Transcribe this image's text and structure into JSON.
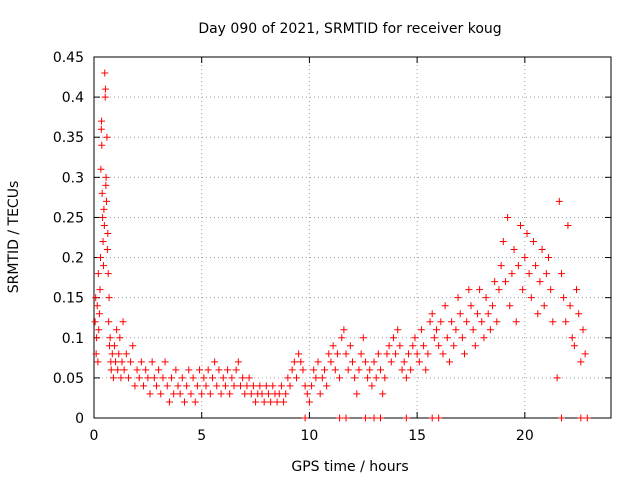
{
  "chart_data": {
    "type": "scatter",
    "title": "Day 090 of 2021, SRMTID for receiver koug",
    "xlabel": "GPS time / hours",
    "ylabel": "SRMTID / TECUs",
    "xlim": [
      0,
      24
    ],
    "ylim": [
      0,
      0.45
    ],
    "xticks": [
      0,
      5,
      10,
      15,
      20
    ],
    "yticks": [
      0,
      0.05,
      0.1,
      0.15,
      0.2,
      0.25,
      0.3,
      0.35,
      0.4,
      0.45
    ],
    "xtick_labels": [
      "0",
      "5",
      "10",
      "15",
      "20"
    ],
    "ytick_labels": [
      "0",
      "0.05",
      "0.1",
      "0.15",
      "0.2",
      "0.25",
      "0.3",
      "0.35",
      "0.4",
      "0.45"
    ],
    "grid": true,
    "marker": "+",
    "color": "#ff0000",
    "series": [
      {
        "name": "SRMTID",
        "points": [
          [
            0.05,
            0.12
          ],
          [
            0.08,
            0.15
          ],
          [
            0.1,
            0.08
          ],
          [
            0.12,
            0.1
          ],
          [
            0.15,
            0.14
          ],
          [
            0.18,
            0.07
          ],
          [
            0.2,
            0.18
          ],
          [
            0.22,
            0.11
          ],
          [
            0.25,
            0.13
          ],
          [
            0.28,
            0.16
          ],
          [
            0.3,
            0.2
          ],
          [
            0.32,
            0.31
          ],
          [
            0.34,
            0.36
          ],
          [
            0.35,
            0.37
          ],
          [
            0.36,
            0.34
          ],
          [
            0.38,
            0.28
          ],
          [
            0.4,
            0.25
          ],
          [
            0.42,
            0.22
          ],
          [
            0.44,
            0.19
          ],
          [
            0.46,
            0.26
          ],
          [
            0.48,
            0.24
          ],
          [
            0.5,
            0.43
          ],
          [
            0.52,
            0.4
          ],
          [
            0.53,
            0.41
          ],
          [
            0.55,
            0.29
          ],
          [
            0.56,
            0.3
          ],
          [
            0.58,
            0.27
          ],
          [
            0.6,
            0.35
          ],
          [
            0.62,
            0.21
          ],
          [
            0.64,
            0.23
          ],
          [
            0.66,
            0.18
          ],
          [
            0.68,
            0.12
          ],
          [
            0.7,
            0.15
          ],
          [
            0.72,
            0.09
          ],
          [
            0.75,
            0.1
          ],
          [
            0.78,
            0.07
          ],
          [
            0.8,
            0.06
          ],
          [
            0.85,
            0.08
          ],
          [
            0.9,
            0.05
          ],
          [
            0.95,
            0.09
          ],
          [
            1.0,
            0.07
          ],
          [
            1.05,
            0.11
          ],
          [
            1.1,
            0.06
          ],
          [
            1.15,
            0.08
          ],
          [
            1.2,
            0.1
          ],
          [
            1.25,
            0.05
          ],
          [
            1.3,
            0.07
          ],
          [
            1.35,
            0.12
          ],
          [
            1.4,
            0.06
          ],
          [
            1.5,
            0.08
          ],
          [
            1.6,
            0.05
          ],
          [
            1.7,
            0.07
          ],
          [
            1.8,
            0.09
          ],
          [
            1.9,
            0.04
          ],
          [
            2.0,
            0.06
          ],
          [
            2.1,
            0.05
          ],
          [
            2.2,
            0.07
          ],
          [
            2.3,
            0.04
          ],
          [
            2.4,
            0.06
          ],
          [
            2.5,
            0.05
          ],
          [
            2.6,
            0.03
          ],
          [
            2.7,
            0.07
          ],
          [
            2.8,
            0.05
          ],
          [
            2.9,
            0.04
          ],
          [
            3.0,
            0.06
          ],
          [
            3.1,
            0.03
          ],
          [
            3.2,
            0.05
          ],
          [
            3.3,
            0.07
          ],
          [
            3.4,
            0.04
          ],
          [
            3.5,
            0.02
          ],
          [
            3.6,
            0.05
          ],
          [
            3.7,
            0.03
          ],
          [
            3.8,
            0.06
          ],
          [
            3.9,
            0.04
          ],
          [
            4.0,
            0.03
          ],
          [
            4.1,
            0.05
          ],
          [
            4.2,
            0.02
          ],
          [
            4.3,
            0.04
          ],
          [
            4.4,
            0.06
          ],
          [
            4.5,
            0.03
          ],
          [
            4.6,
            0.05
          ],
          [
            4.7,
            0.02
          ],
          [
            4.8,
            0.04
          ],
          [
            4.9,
            0.06
          ],
          [
            5.0,
            0.03
          ],
          [
            5.1,
            0.05
          ],
          [
            5.2,
            0.04
          ],
          [
            5.3,
            0.06
          ],
          [
            5.4,
            0.03
          ],
          [
            5.5,
            0.05
          ],
          [
            5.6,
            0.07
          ],
          [
            5.7,
            0.04
          ],
          [
            5.8,
            0.06
          ],
          [
            5.9,
            0.03
          ],
          [
            6.0,
            0.05
          ],
          [
            6.1,
            0.04
          ],
          [
            6.2,
            0.06
          ],
          [
            6.3,
            0.03
          ],
          [
            6.4,
            0.05
          ],
          [
            6.5,
            0.04
          ],
          [
            6.6,
            0.06
          ],
          [
            6.7,
            0.07
          ],
          [
            6.8,
            0.04
          ],
          [
            6.9,
            0.05
          ],
          [
            7.0,
            0.03
          ],
          [
            7.1,
            0.04
          ],
          [
            7.2,
            0.05
          ],
          [
            7.3,
            0.03
          ],
          [
            7.4,
            0.04
          ],
          [
            7.5,
            0.02
          ],
          [
            7.6,
            0.03
          ],
          [
            7.7,
            0.04
          ],
          [
            7.8,
            0.03
          ],
          [
            7.9,
            0.02
          ],
          [
            8.0,
            0.04
          ],
          [
            8.1,
            0.03
          ],
          [
            8.2,
            0.02
          ],
          [
            8.3,
            0.04
          ],
          [
            8.4,
            0.03
          ],
          [
            8.5,
            0.02
          ],
          [
            8.6,
            0.03
          ],
          [
            8.7,
            0.04
          ],
          [
            8.8,
            0.02
          ],
          [
            8.9,
            0.03
          ],
          [
            9.0,
            0.05
          ],
          [
            9.1,
            0.04
          ],
          [
            9.2,
            0.06
          ],
          [
            9.3,
            0.07
          ],
          [
            9.4,
            0.05
          ],
          [
            9.5,
            0.08
          ],
          [
            9.6,
            0.07
          ],
          [
            9.7,
            0.06
          ],
          [
            9.8,
            0.04
          ],
          [
            9.9,
            0.03
          ],
          [
            10.0,
            0.02
          ],
          [
            10.1,
            0.04
          ],
          [
            10.2,
            0.06
          ],
          [
            10.3,
            0.05
          ],
          [
            10.4,
            0.07
          ],
          [
            10.5,
            0.03
          ],
          [
            10.6,
            0.05
          ],
          [
            10.7,
            0.06
          ],
          [
            10.8,
            0.04
          ],
          [
            10.9,
            0.08
          ],
          [
            11.0,
            0.07
          ],
          [
            11.1,
            0.09
          ],
          [
            11.2,
            0.06
          ],
          [
            11.3,
            0.08
          ],
          [
            11.4,
            0.05
          ],
          [
            11.5,
            0.1
          ],
          [
            11.6,
            0.11
          ],
          [
            11.7,
            0.08
          ],
          [
            11.8,
            0.06
          ],
          [
            11.9,
            0.09
          ],
          [
            12.0,
            0.07
          ],
          [
            12.1,
            0.05
          ],
          [
            12.2,
            0.03
          ],
          [
            12.3,
            0.06
          ],
          [
            12.4,
            0.08
          ],
          [
            12.5,
            0.1
          ],
          [
            12.6,
            0.07
          ],
          [
            12.7,
            0.05
          ],
          [
            12.8,
            0.06
          ],
          [
            12.9,
            0.04
          ],
          [
            13.0,
            0.07
          ],
          [
            13.1,
            0.05
          ],
          [
            13.2,
            0.08
          ],
          [
            13.3,
            0.06
          ],
          [
            13.4,
            0.03
          ],
          [
            13.5,
            0.05
          ],
          [
            13.6,
            0.08
          ],
          [
            13.7,
            0.09
          ],
          [
            13.8,
            0.07
          ],
          [
            13.9,
            0.1
          ],
          [
            14.0,
            0.08
          ],
          [
            14.1,
            0.11
          ],
          [
            14.2,
            0.09
          ],
          [
            14.3,
            0.06
          ],
          [
            14.4,
            0.07
          ],
          [
            14.5,
            0.05
          ],
          [
            14.6,
            0.08
          ],
          [
            14.7,
            0.06
          ],
          [
            14.8,
            0.09
          ],
          [
            14.9,
            0.1
          ],
          [
            15.0,
            0.08
          ],
          [
            15.1,
            0.07
          ],
          [
            15.2,
            0.11
          ],
          [
            15.3,
            0.09
          ],
          [
            15.4,
            0.06
          ],
          [
            15.5,
            0.08
          ],
          [
            15.6,
            0.12
          ],
          [
            15.7,
            0.13
          ],
          [
            15.8,
            0.1
          ],
          [
            15.9,
            0.11
          ],
          [
            16.0,
            0.09
          ],
          [
            16.1,
            0.12
          ],
          [
            16.2,
            0.08
          ],
          [
            16.3,
            0.14
          ],
          [
            16.4,
            0.1
          ],
          [
            16.5,
            0.07
          ],
          [
            16.6,
            0.12
          ],
          [
            16.7,
            0.09
          ],
          [
            16.8,
            0.11
          ],
          [
            16.9,
            0.15
          ],
          [
            17.0,
            0.13
          ],
          [
            17.1,
            0.1
          ],
          [
            17.2,
            0.08
          ],
          [
            17.3,
            0.12
          ],
          [
            17.4,
            0.16
          ],
          [
            17.5,
            0.14
          ],
          [
            17.6,
            0.11
          ],
          [
            17.7,
            0.09
          ],
          [
            17.8,
            0.13
          ],
          [
            17.9,
            0.16
          ],
          [
            18.0,
            0.12
          ],
          [
            18.1,
            0.1
          ],
          [
            18.2,
            0.15
          ],
          [
            18.3,
            0.13
          ],
          [
            18.4,
            0.11
          ],
          [
            18.5,
            0.14
          ],
          [
            18.6,
            0.17
          ],
          [
            18.7,
            0.12
          ],
          [
            18.8,
            0.16
          ],
          [
            18.9,
            0.19
          ],
          [
            19.0,
            0.22
          ],
          [
            19.1,
            0.17
          ],
          [
            19.2,
            0.25
          ],
          [
            19.3,
            0.14
          ],
          [
            19.4,
            0.18
          ],
          [
            19.5,
            0.21
          ],
          [
            19.6,
            0.12
          ],
          [
            19.7,
            0.19
          ],
          [
            19.8,
            0.24
          ],
          [
            19.9,
            0.16
          ],
          [
            20.0,
            0.2
          ],
          [
            20.1,
            0.23
          ],
          [
            20.2,
            0.18
          ],
          [
            20.3,
            0.15
          ],
          [
            20.4,
            0.22
          ],
          [
            20.5,
            0.19
          ],
          [
            20.6,
            0.13
          ],
          [
            20.7,
            0.17
          ],
          [
            20.8,
            0.21
          ],
          [
            20.9,
            0.14
          ],
          [
            21.0,
            0.18
          ],
          [
            21.1,
            0.2
          ],
          [
            21.2,
            0.16
          ],
          [
            21.3,
            0.12
          ],
          [
            21.5,
            0.05
          ],
          [
            21.6,
            0.27
          ],
          [
            21.7,
            0.18
          ],
          [
            21.8,
            0.15
          ],
          [
            21.9,
            0.12
          ],
          [
            22.0,
            0.24
          ],
          [
            22.1,
            0.14
          ],
          [
            22.2,
            0.1
          ],
          [
            22.3,
            0.09
          ],
          [
            22.4,
            0.16
          ],
          [
            22.5,
            0.13
          ],
          [
            22.6,
            0.07
          ],
          [
            22.7,
            0.11
          ],
          [
            22.8,
            0.08
          ],
          [
            9.8,
            0.0
          ],
          [
            11.4,
            0.0
          ],
          [
            11.7,
            0.0
          ],
          [
            12.6,
            0.0
          ],
          [
            13.0,
            0.0
          ],
          [
            13.3,
            0.0
          ],
          [
            14.5,
            0.0
          ],
          [
            15.7,
            0.0
          ],
          [
            16.0,
            0.0
          ],
          [
            21.7,
            0.0
          ],
          [
            22.6,
            0.0
          ],
          [
            22.9,
            0.0
          ]
        ]
      }
    ]
  }
}
